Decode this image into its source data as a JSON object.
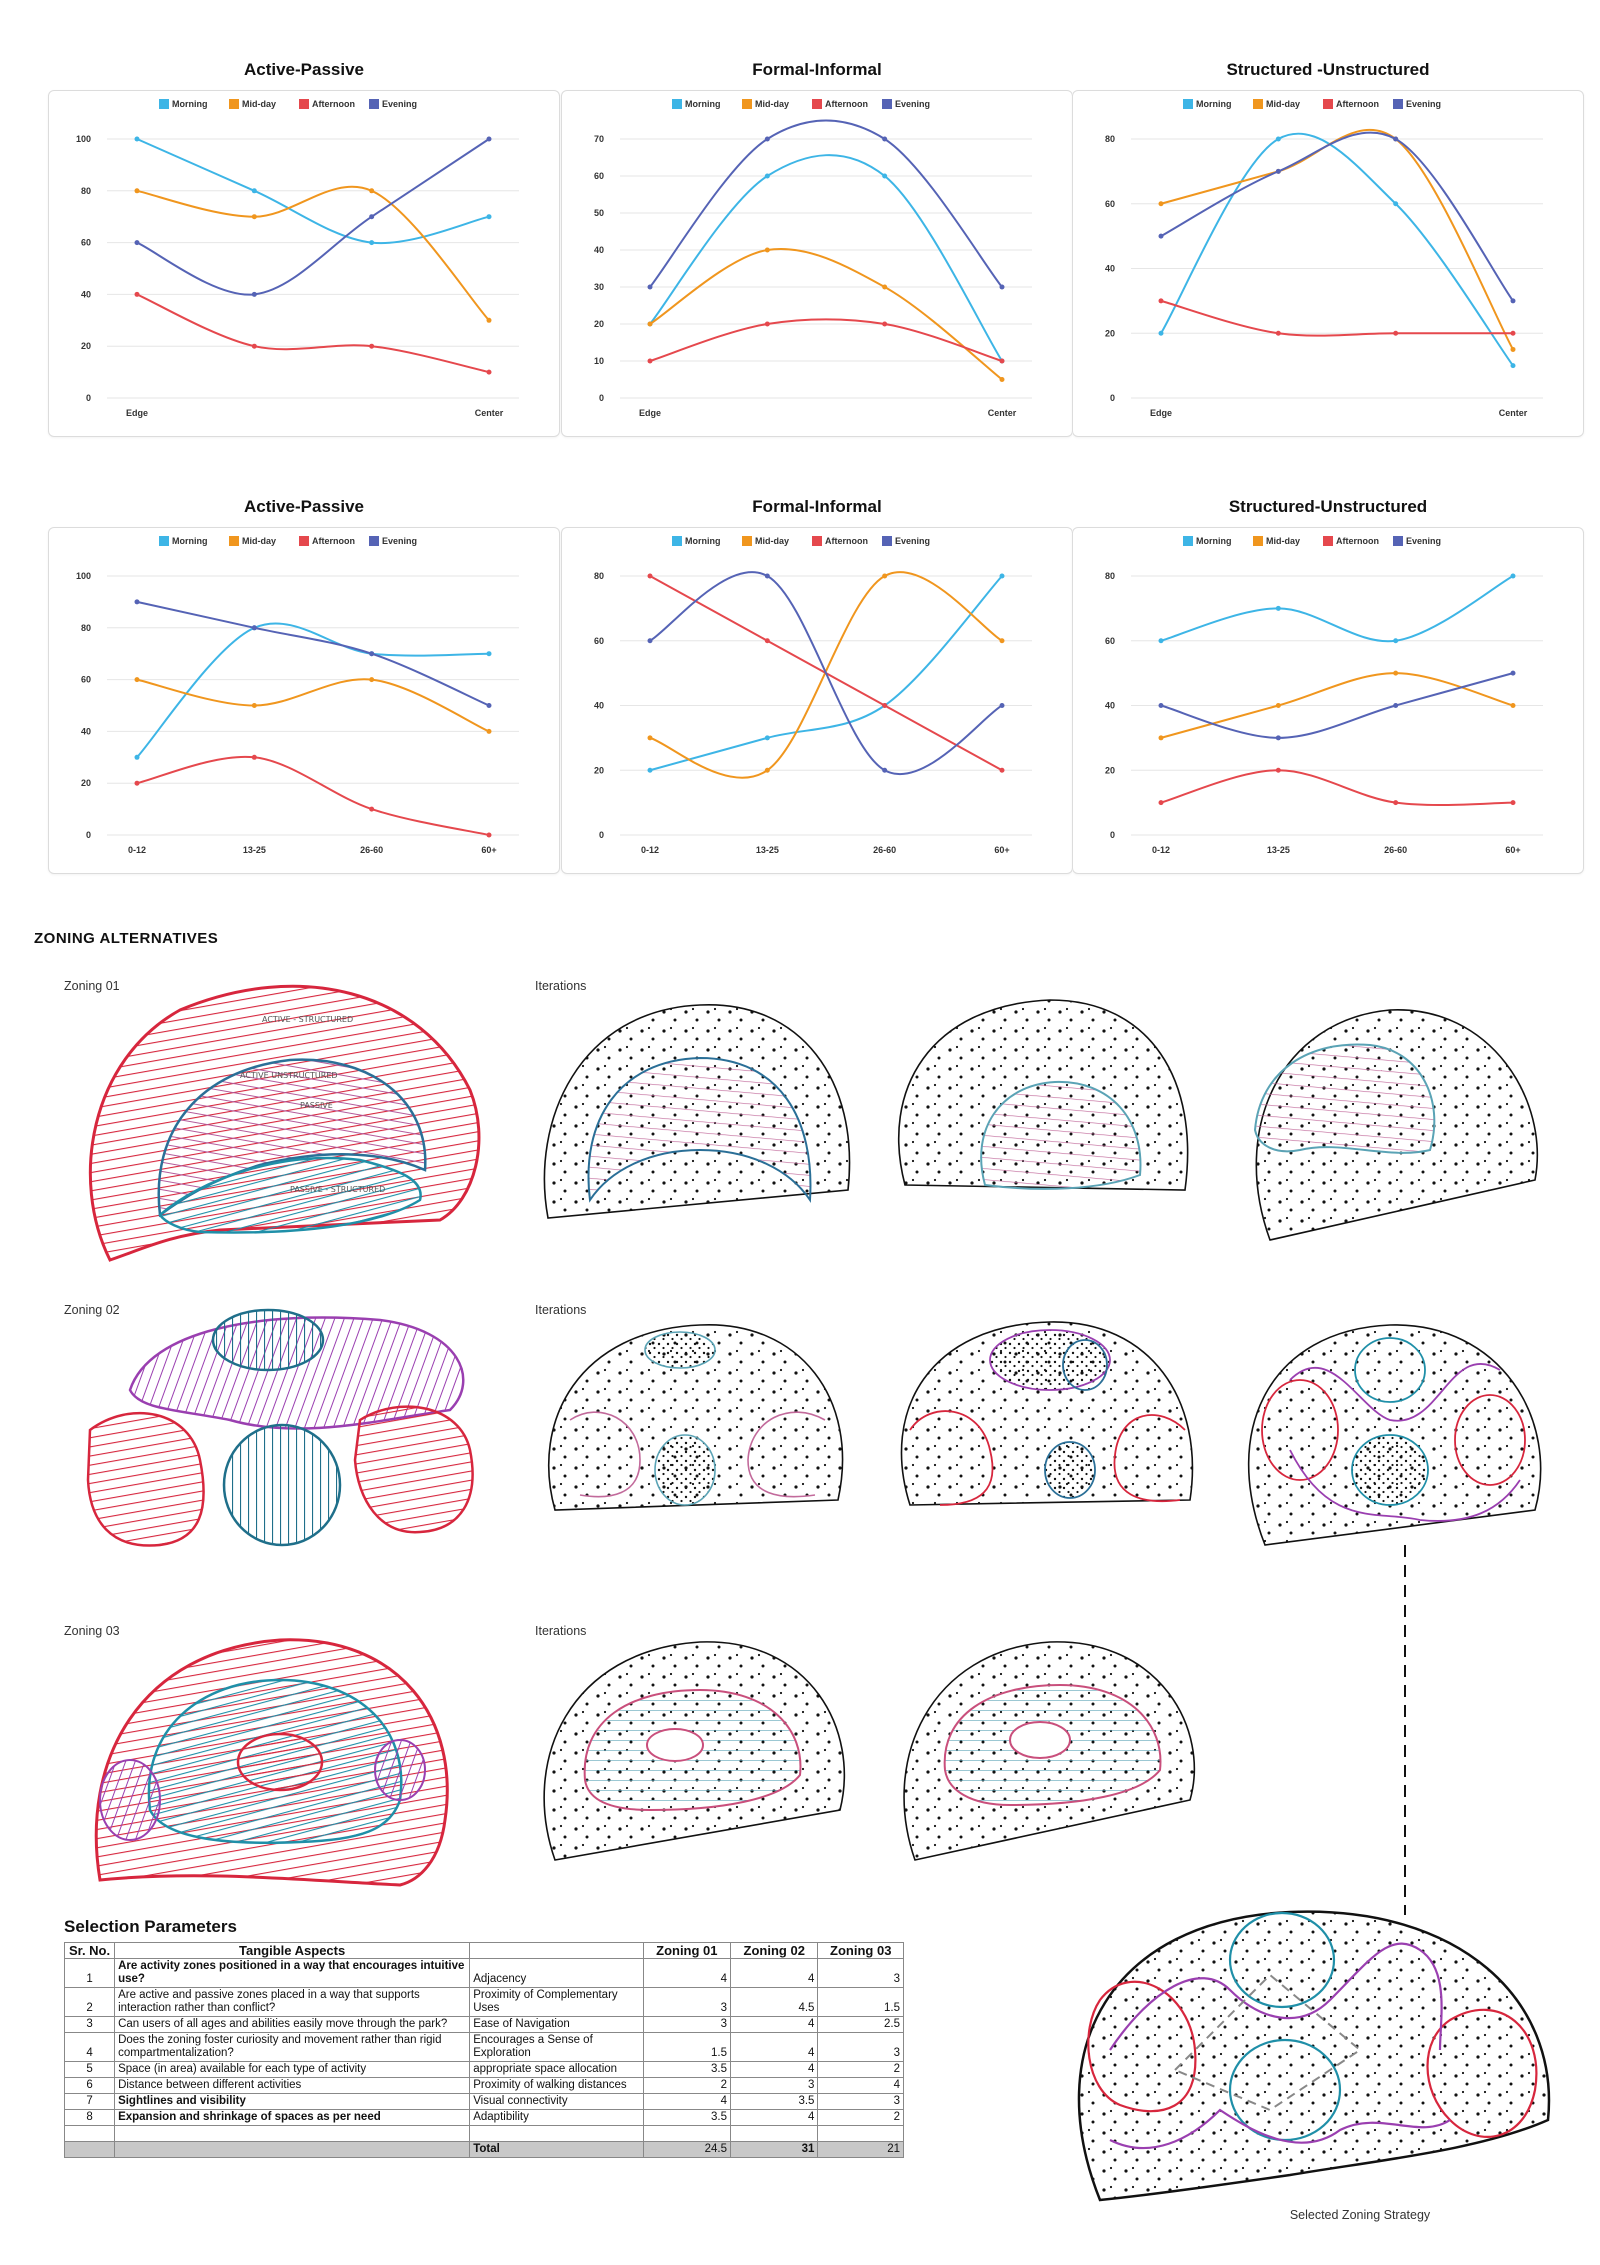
{
  "charts": [
    {
      "title": "Active-Passive",
      "type": "line",
      "categories": [
        "Edge",
        "",
        "",
        "Center"
      ],
      "ylim": [
        0,
        100
      ],
      "yticks": [
        0,
        20,
        40,
        60,
        80,
        100
      ],
      "legend": [
        "Morning",
        "Mid-day",
        "Afternoon",
        "Evening"
      ],
      "series": [
        {
          "name": "Morning",
          "color": "#3db5e6",
          "values": [
            100,
            80,
            60,
            70
          ]
        },
        {
          "name": "Mid-day",
          "color": "#f0961e",
          "values": [
            80,
            70,
            80,
            30
          ]
        },
        {
          "name": "Afternoon",
          "color": "#e5484d",
          "values": [
            40,
            20,
            20,
            10
          ]
        },
        {
          "name": "Evening",
          "color": "#5563b5",
          "values": [
            60,
            40,
            70,
            100
          ]
        }
      ]
    },
    {
      "title": "Formal-Informal",
      "type": "line",
      "categories": [
        "Edge",
        "",
        "",
        "Center"
      ],
      "ylim": [
        0,
        70
      ],
      "yticks": [
        0,
        10,
        20,
        30,
        40,
        50,
        60,
        70
      ],
      "legend": [
        "Morning",
        "Mid-day",
        "Afternoon",
        "Evening"
      ],
      "series": [
        {
          "name": "Morning",
          "color": "#3db5e6",
          "values": [
            20,
            60,
            60,
            10
          ]
        },
        {
          "name": "Mid-day",
          "color": "#f0961e",
          "values": [
            20,
            40,
            30,
            5
          ]
        },
        {
          "name": "Afternoon",
          "color": "#e5484d",
          "values": [
            10,
            20,
            20,
            10
          ]
        },
        {
          "name": "Evening",
          "color": "#5563b5",
          "values": [
            30,
            70,
            70,
            30
          ]
        }
      ]
    },
    {
      "title": "Structured -Unstructured",
      "type": "line",
      "categories": [
        "Edge",
        "",
        "",
        "Center"
      ],
      "ylim": [
        0,
        80
      ],
      "yticks": [
        0,
        20,
        40,
        60,
        80
      ],
      "legend": [
        "Morning",
        "Mid-day",
        "Afternoon",
        "Evening"
      ],
      "series": [
        {
          "name": "Morning",
          "color": "#3db5e6",
          "values": [
            20,
            80,
            60,
            10
          ]
        },
        {
          "name": "Mid-day",
          "color": "#f0961e",
          "values": [
            60,
            70,
            80,
            15
          ]
        },
        {
          "name": "Afternoon",
          "color": "#e5484d",
          "values": [
            30,
            20,
            20,
            20
          ]
        },
        {
          "name": "Evening",
          "color": "#5563b5",
          "values": [
            50,
            70,
            80,
            30
          ]
        }
      ]
    },
    {
      "title": "Active-Passive",
      "type": "line",
      "categories": [
        "0-12",
        "13-25",
        "26-60",
        "60+"
      ],
      "ylim": [
        0,
        100
      ],
      "yticks": [
        0,
        20,
        40,
        60,
        80,
        100
      ],
      "legend": [
        "Morning",
        "Mid-day",
        "Afternoon",
        "Evening"
      ],
      "series": [
        {
          "name": "Morning",
          "color": "#3db5e6",
          "values": [
            30,
            80,
            70,
            70
          ]
        },
        {
          "name": "Mid-day",
          "color": "#f0961e",
          "values": [
            60,
            50,
            60,
            40
          ]
        },
        {
          "name": "Afternoon",
          "color": "#e5484d",
          "values": [
            20,
            30,
            10,
            0
          ]
        },
        {
          "name": "Evening",
          "color": "#5563b5",
          "values": [
            90,
            80,
            70,
            50
          ]
        }
      ]
    },
    {
      "title": "Formal-Informal",
      "type": "line",
      "categories": [
        "0-12",
        "13-25",
        "26-60",
        "60+"
      ],
      "ylim": [
        0,
        80
      ],
      "yticks": [
        0,
        20,
        40,
        60,
        80
      ],
      "legend": [
        "Morning",
        "Mid-day",
        "Afternoon",
        "Evening"
      ],
      "series": [
        {
          "name": "Morning",
          "color": "#3db5e6",
          "values": [
            20,
            30,
            40,
            80
          ]
        },
        {
          "name": "Mid-day",
          "color": "#f0961e",
          "values": [
            30,
            20,
            80,
            60
          ]
        },
        {
          "name": "Afternoon",
          "color": "#e5484d",
          "values": [
            80,
            60,
            40,
            20
          ]
        },
        {
          "name": "Evening",
          "color": "#5563b5",
          "values": [
            60,
            80,
            20,
            40
          ]
        }
      ]
    },
    {
      "title": "Structured-Unstructured",
      "type": "line",
      "categories": [
        "0-12",
        "13-25",
        "26-60",
        "60+"
      ],
      "ylim": [
        0,
        80
      ],
      "yticks": [
        0,
        20,
        40,
        60,
        80
      ],
      "legend": [
        "Morning",
        "Mid-day",
        "Afternoon",
        "Evening"
      ],
      "series": [
        {
          "name": "Morning",
          "color": "#3db5e6",
          "values": [
            60,
            70,
            60,
            80
          ]
        },
        {
          "name": "Mid-day",
          "color": "#f0961e",
          "values": [
            30,
            40,
            50,
            40
          ]
        },
        {
          "name": "Afternoon",
          "color": "#e5484d",
          "values": [
            10,
            20,
            10,
            10
          ]
        },
        {
          "name": "Evening",
          "color": "#5563b5",
          "values": [
            40,
            30,
            40,
            50
          ]
        }
      ]
    }
  ],
  "zoning": {
    "heading": "ZONING ALTERNATIVES",
    "zoning01_label": "Zoning 01",
    "zoning02_label": "Zoning 02",
    "zoning03_label": "Zoning 03",
    "iterations_label": "Iterations",
    "sketch_notes": [
      "ACTIVE - STRUCTURED",
      "ACTIVE UNSTRUCTURED",
      "PASSIVE",
      "PASSIVE - STRUCTURED"
    ]
  },
  "selection": {
    "title": "Selection Parameters",
    "headers": [
      "Sr. No.",
      "Tangible Aspects",
      "",
      "Zoning 01",
      "Zoning 02",
      "Zoning 03"
    ],
    "rows": [
      {
        "no": "1",
        "question": "Are activity zones positioned in a way that encourages intuitive use?",
        "bold": true,
        "aspect": "Adjacency",
        "z1": "4",
        "z2": "4",
        "z3": "3"
      },
      {
        "no": "2",
        "question": "Are active and passive zones placed in a way that supports interaction rather than conflict?",
        "bold": false,
        "aspect": "Proximity of Complementary Uses",
        "z1": "3",
        "z2": "4.5",
        "z3": "1.5"
      },
      {
        "no": "3",
        "question": "Can users of all ages and abilities easily move through the park?",
        "bold": false,
        "aspect": "Ease of Navigation",
        "z1": "3",
        "z2": "4",
        "z3": "2.5"
      },
      {
        "no": "4",
        "question": "Does the zoning foster curiosity and movement rather than rigid compartmentalization?",
        "bold": false,
        "aspect": "Encourages a Sense of Exploration",
        "z1": "1.5",
        "z2": "4",
        "z3": "3"
      },
      {
        "no": "5",
        "question": "Space (in area) available for each type of activity",
        "bold": false,
        "aspect": "appropriate space allocation",
        "z1": "3.5",
        "z2": "4",
        "z3": "2"
      },
      {
        "no": "6",
        "question": "Distance between different activities",
        "bold": false,
        "aspect": "Proximity of walking distances",
        "z1": "2",
        "z2": "3",
        "z3": "4"
      },
      {
        "no": "7",
        "question": "Sightlines and visibility",
        "bold": true,
        "aspect": "Visual connectivity",
        "z1": "4",
        "z2": "3.5",
        "z3": "3"
      },
      {
        "no": "8",
        "question": "Expansion and shrinkage of spaces as per need",
        "bold": true,
        "aspect": "Adaptibility",
        "z1": "3.5",
        "z2": "4",
        "z3": "2"
      }
    ],
    "total": {
      "label": "Total",
      "z1": "24.5",
      "z2": "31",
      "z3": "21"
    }
  },
  "selected_caption": "Selected Zoning Strategy",
  "colors": {
    "red": "#d7263d",
    "pink": "#c94f7c",
    "purple": "#9a3fb0",
    "teal": "#1f8fa8",
    "blue": "#2a6f97"
  }
}
